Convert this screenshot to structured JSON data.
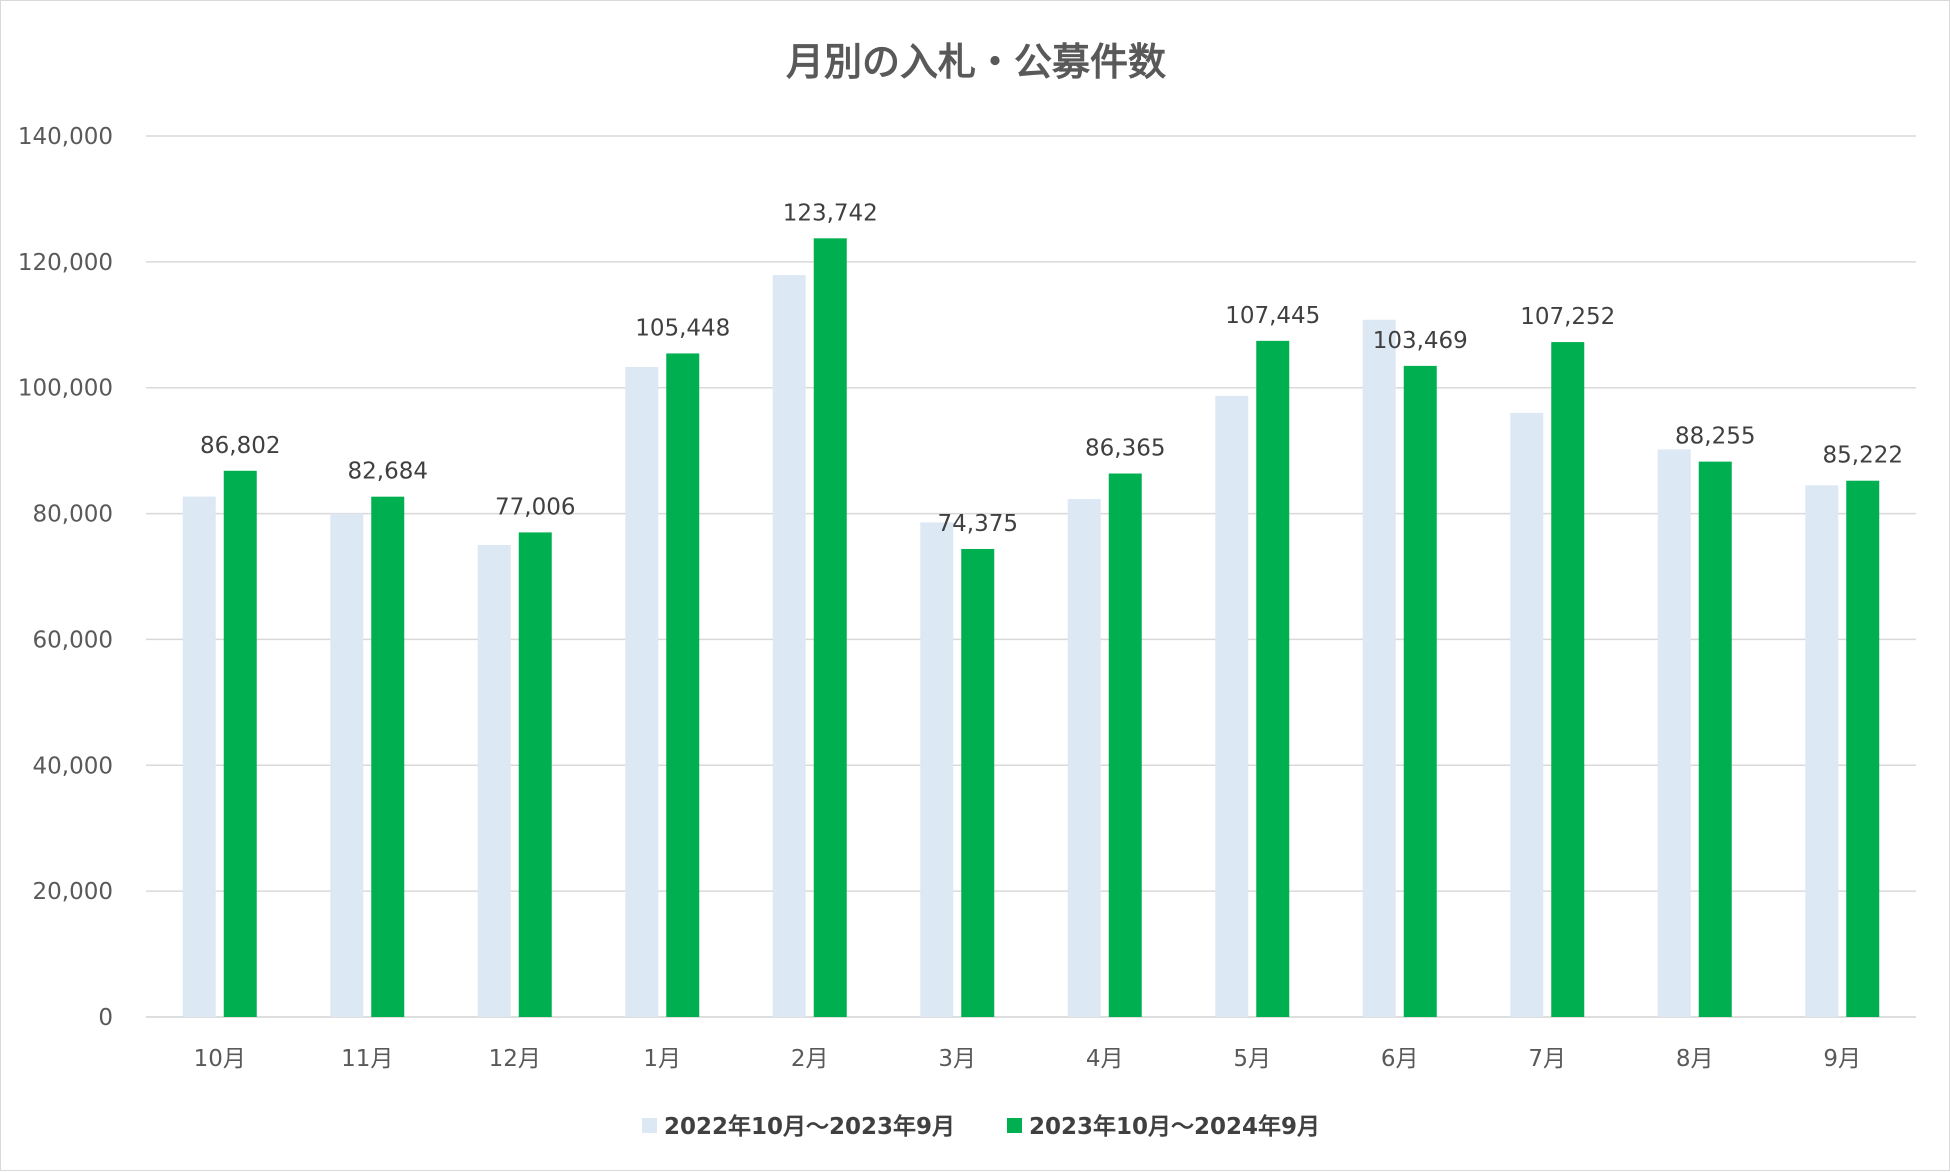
{
  "chart_data": {
    "type": "bar",
    "title": "月別の入札・公募件数",
    "xlabel": "",
    "ylabel": "",
    "ylim": [
      0,
      140000
    ],
    "y_ticks": [
      "0",
      "20,000",
      "40,000",
      "60,000",
      "80,000",
      "100,000",
      "120,000",
      "140,000"
    ],
    "y_tick_values": [
      0,
      20000,
      40000,
      60000,
      80000,
      100000,
      120000,
      140000
    ],
    "grid": true,
    "legend_position": "bottom",
    "categories": [
      "10月",
      "11月",
      "12月",
      "1月",
      "2月",
      "3月",
      "4月",
      "5月",
      "6月",
      "7月",
      "8月",
      "9月"
    ],
    "series": [
      {
        "name": "2022年10月～2023年9月",
        "color": "#dde8f5",
        "values": [
          82700,
          80000,
          75000,
          103300,
          117900,
          78600,
          82300,
          98700,
          110800,
          96000,
          90200,
          84500
        ],
        "data_labels": null
      },
      {
        "name": "2023年10月～2024年9月",
        "color": "#00b050",
        "values": [
          86802,
          82684,
          77006,
          105448,
          123742,
          74375,
          86365,
          107445,
          103469,
          107252,
          88255,
          85222
        ],
        "data_labels": [
          "86,802",
          "82,684",
          "77,006",
          "105,448",
          "123,742",
          "74,375",
          "86,365",
          "107,445",
          "103,469",
          "107,252",
          "88,255",
          "85,222"
        ]
      }
    ]
  },
  "colors": {
    "gridline": "#d9d9d9",
    "axis_text": "#595959",
    "label_text": "#404040"
  }
}
